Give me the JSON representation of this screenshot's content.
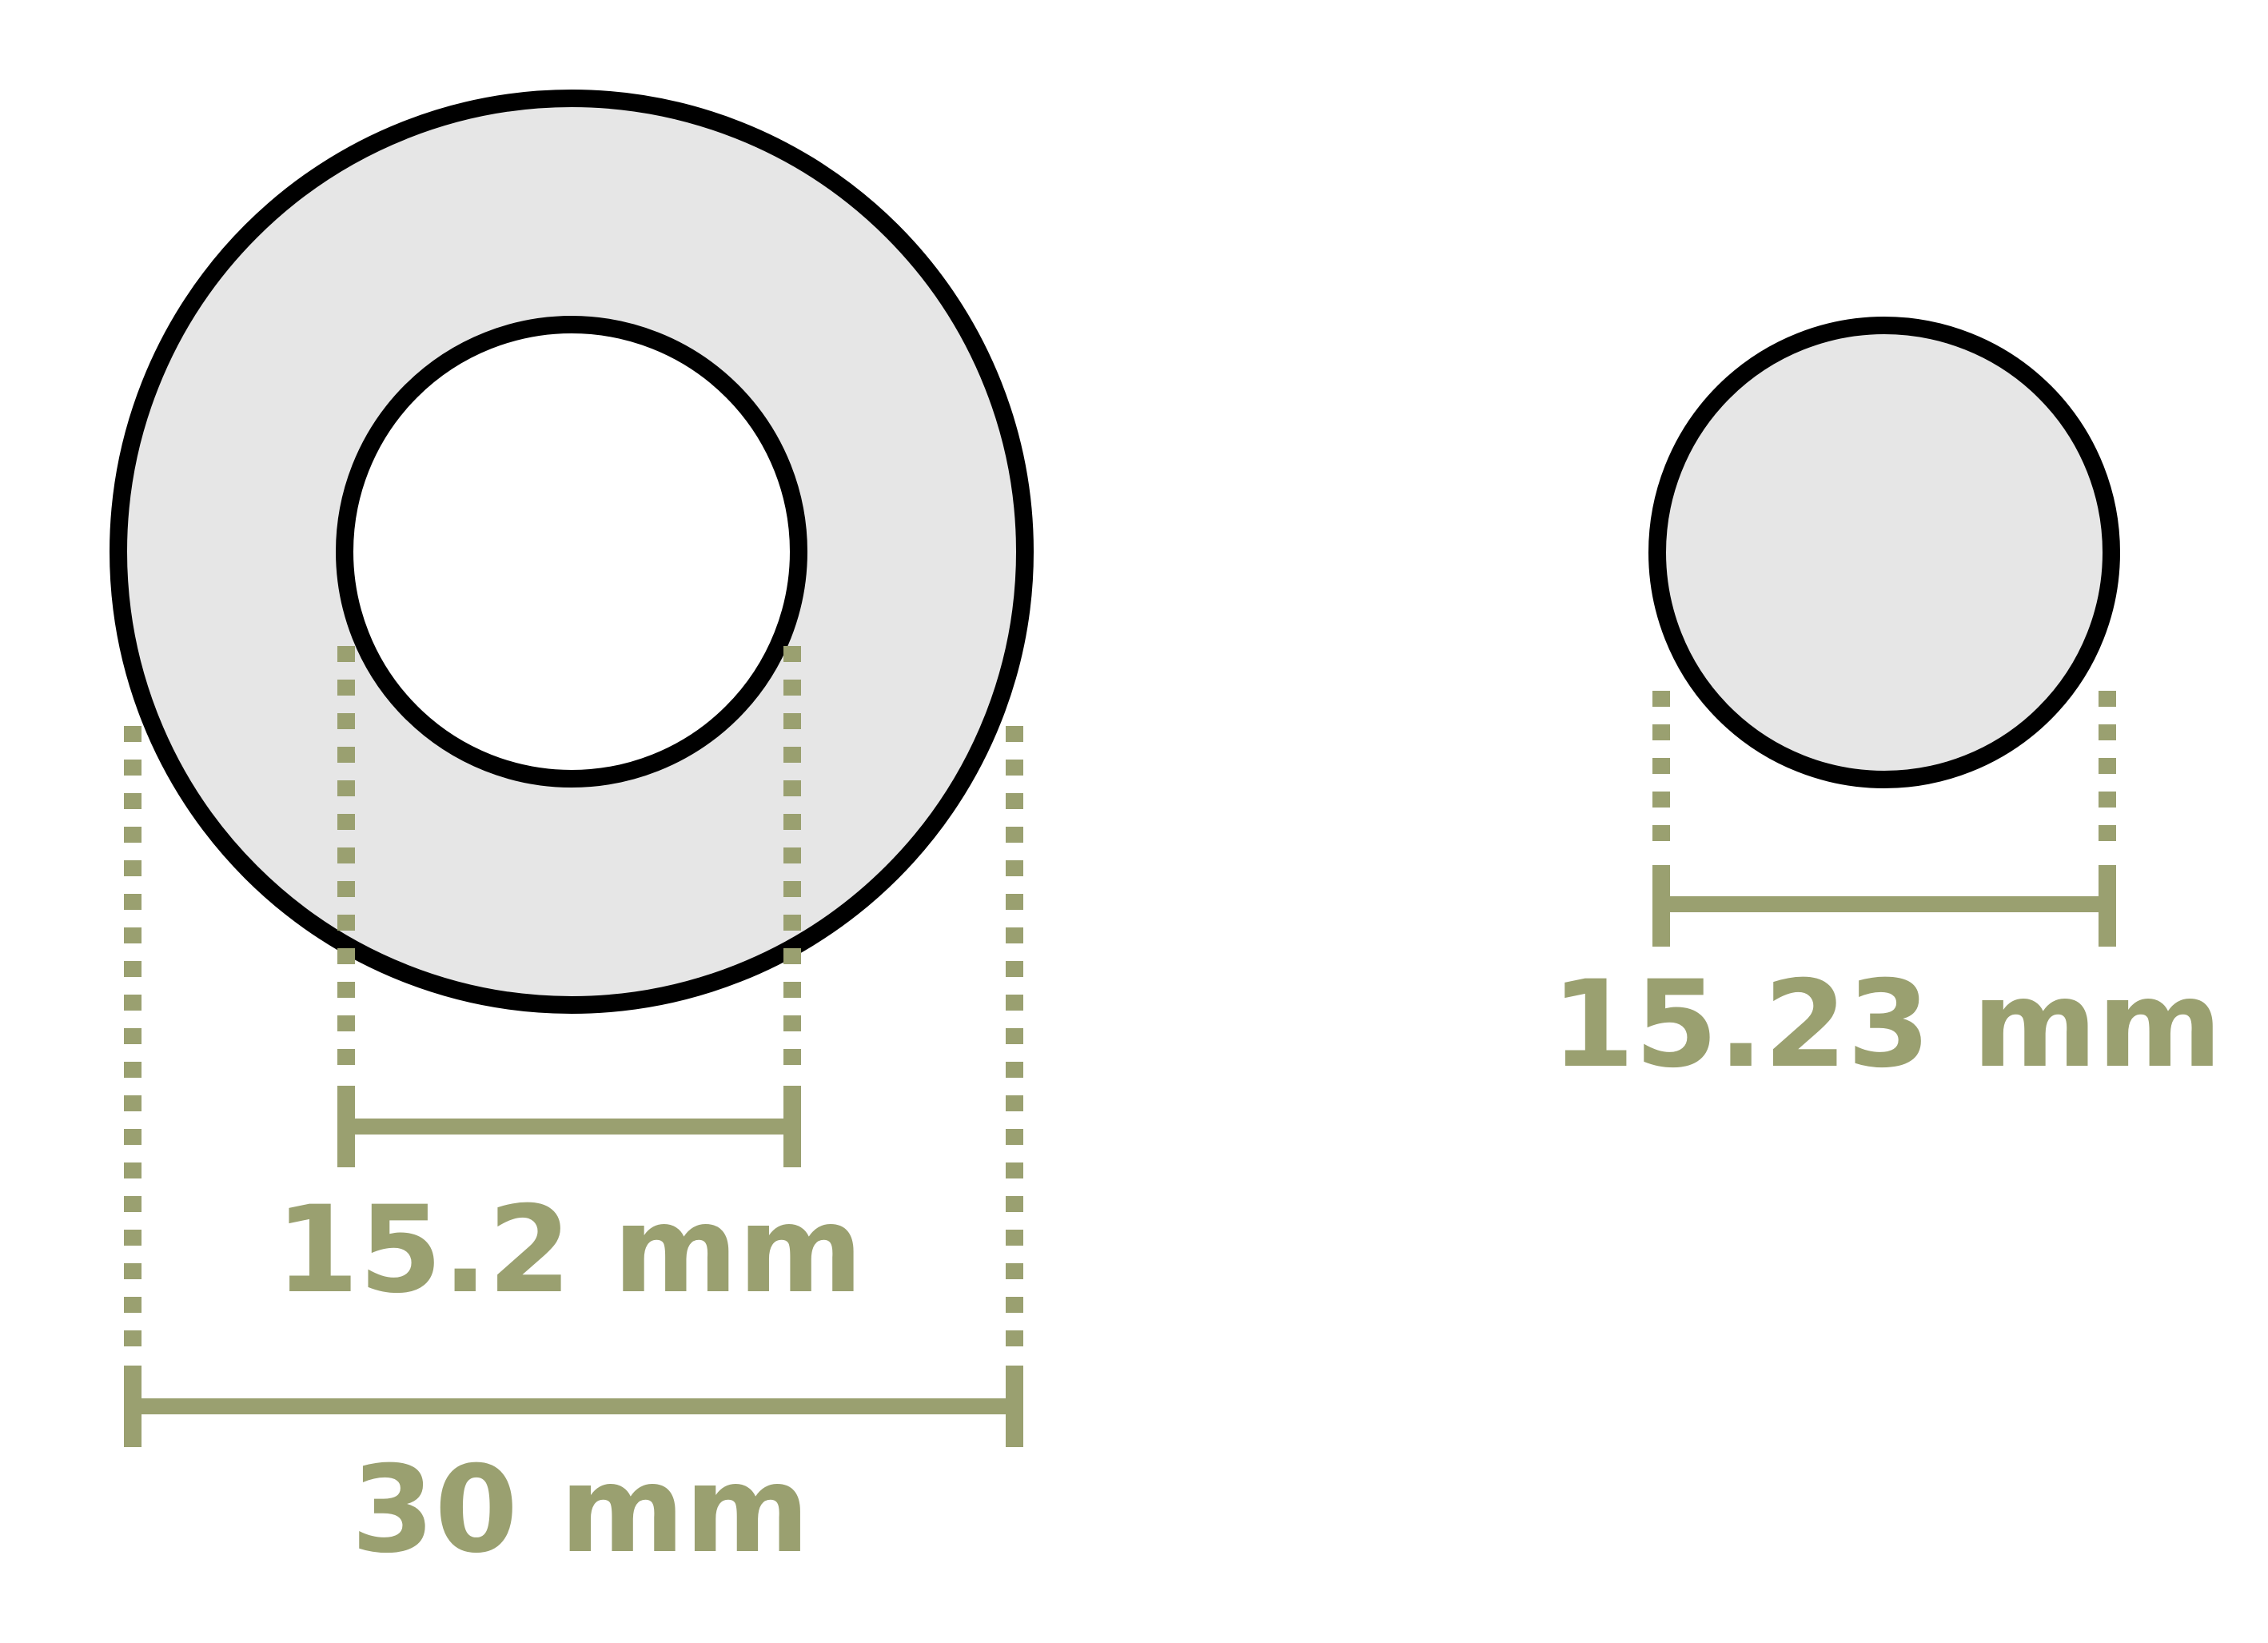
{
  "colors": {
    "dimension": "#9aa070",
    "outline": "#000000",
    "fill": "#e6e6e6",
    "hole": "#ffffff"
  },
  "washer": {
    "outer_diameter_label": "30 mm",
    "inner_diameter_label": "15.2 mm"
  },
  "disc": {
    "diameter_label": "15.23 mm"
  }
}
